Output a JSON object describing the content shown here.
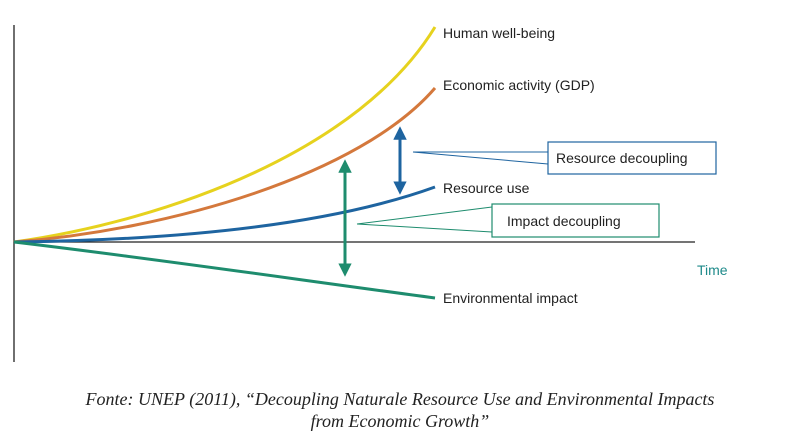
{
  "diagram": {
    "curves": [
      {
        "id": "human",
        "label": "Human well-being",
        "color": "#e6d21e"
      },
      {
        "id": "gdp",
        "label": "Economic activity (GDP)",
        "color": "#d4783c"
      },
      {
        "id": "resource",
        "label": "Resource use",
        "color": "#1e64a0"
      },
      {
        "id": "impact",
        "label": "Environmental impact",
        "color": "#1e8c6e"
      }
    ],
    "axis_label": "Time",
    "callouts": {
      "resource_decoupling": {
        "label": "Resource decoupling",
        "color": "#1e64a0"
      },
      "impact_decoupling": {
        "label": "Impact decoupling",
        "color": "#1e8c6e"
      }
    },
    "axis_color": "#222222"
  },
  "caption": {
    "line1": "Fonte: UNEP (2011), “Decoupling Naturale Resource Use and Environmental Impacts",
    "line2": "from Economic Growth”"
  }
}
